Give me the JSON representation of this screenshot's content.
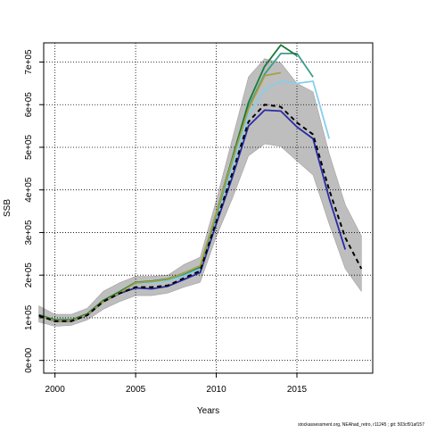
{
  "chart_data": {
    "type": "line",
    "title": "",
    "xlabel": "Years",
    "ylabel": "SSB",
    "xlim": [
      1999.3,
      2019.7
    ],
    "ylim": [
      -30000,
      745000
    ],
    "xticks": [
      2000,
      2005,
      2010,
      2015
    ],
    "xtick_labels": [
      "2000",
      "2005",
      "2010",
      "2015"
    ],
    "yticks": [
      0,
      100000,
      200000,
      300000,
      400000,
      500000,
      600000,
      700000
    ],
    "ytick_labels": [
      "0e+00",
      "1e+05",
      "2e+05",
      "3e+05",
      "4e+05",
      "5e+05",
      "6e+05",
      "7e+05"
    ],
    "grid": true,
    "colors": {
      "band": "#bebebe",
      "band_edge": "#a0a0a0",
      "base": "#000000",
      "r2018": "#2a2aa8",
      "r2017": "#87ceeb",
      "r2016": "#3a9e8a",
      "r2015": "#1a7a3a",
      "r2014": "#a8a040",
      "axis": "#000000",
      "grid": "#000000"
    },
    "confidence_band": {
      "x": [
        1999,
        2000,
        2001,
        2002,
        2003,
        2004,
        2005,
        2006,
        2007,
        2008,
        2009,
        2010,
        2011,
        2012,
        2013,
        2014,
        2015,
        2016,
        2017,
        2018,
        2019
      ],
      "lower": [
        90000,
        80000,
        82000,
        95000,
        120000,
        138000,
        152000,
        152000,
        158000,
        172000,
        183000,
        290000,
        380000,
        480000,
        508000,
        502000,
        468000,
        435000,
        320000,
        215000,
        162000
      ],
      "upper": [
        128000,
        108000,
        108000,
        122000,
        162000,
        182000,
        197000,
        197000,
        200000,
        225000,
        242000,
        375000,
        520000,
        665000,
        708000,
        698000,
        650000,
        630000,
        485000,
        365000,
        292000
      ]
    },
    "series": [
      {
        "style": "dashed-black",
        "x": [
          1999,
          2000,
          2001,
          2002,
          2003,
          2004,
          2005,
          2006,
          2007,
          2008,
          2009,
          2010,
          2011,
          2012,
          2013,
          2014,
          2015,
          2016,
          2017,
          2018,
          2019
        ],
        "values": [
          105000,
          92000,
          92000,
          106000,
          138000,
          157000,
          172000,
          172000,
          176000,
          193000,
          210000,
          325000,
          440000,
          560000,
          600000,
          595000,
          558000,
          530000,
          400000,
          288000,
          215000
        ]
      },
      {
        "style": "solid",
        "color_key": "r2018",
        "x": [
          1999,
          2000,
          2001,
          2002,
          2003,
          2004,
          2005,
          2006,
          2007,
          2008,
          2009,
          2010,
          2011,
          2012,
          2013,
          2014,
          2015,
          2016,
          2017,
          2018
        ],
        "values": [
          105000,
          92000,
          92000,
          106000,
          138000,
          157000,
          170000,
          168000,
          174000,
          190000,
          206000,
          320000,
          430000,
          550000,
          587000,
          585000,
          548000,
          520000,
          380000,
          260000
        ]
      },
      {
        "style": "solid",
        "color_key": "r2017",
        "x": [
          1999,
          2000,
          2001,
          2002,
          2003,
          2004,
          2005,
          2006,
          2007,
          2008,
          2009,
          2010,
          2011,
          2012,
          2013,
          2014,
          2015,
          2016,
          2017
        ],
        "values": [
          105000,
          93000,
          93000,
          107000,
          139000,
          159000,
          180000,
          182000,
          186000,
          198000,
          215000,
          335000,
          455000,
          575000,
          635000,
          655000,
          650000,
          655000,
          520000
        ]
      },
      {
        "style": "solid",
        "color_key": "r2016",
        "x": [
          1999,
          2000,
          2001,
          2002,
          2003,
          2004,
          2005,
          2006,
          2007,
          2008,
          2009,
          2010,
          2011,
          2012,
          2013,
          2014,
          2015,
          2016
        ],
        "values": [
          106000,
          94000,
          94000,
          108000,
          140000,
          160000,
          182000,
          185000,
          190000,
          202000,
          218000,
          340000,
          468000,
          595000,
          672000,
          720000,
          720000,
          665000
        ]
      },
      {
        "style": "solid",
        "color_key": "r2015",
        "x": [
          1999,
          2000,
          2001,
          2002,
          2003,
          2004,
          2005,
          2006,
          2007,
          2008,
          2009,
          2010,
          2011,
          2012,
          2013,
          2014,
          2015
        ],
        "values": [
          107000,
          95000,
          95000,
          109000,
          141000,
          161000,
          183000,
          186000,
          191000,
          205000,
          220000,
          345000,
          475000,
          605000,
          690000,
          740000,
          715000
        ]
      },
      {
        "style": "solid",
        "color_key": "r2014",
        "x": [
          1999,
          2000,
          2001,
          2002,
          2003,
          2004,
          2005,
          2006,
          2007,
          2008,
          2009,
          2010,
          2011,
          2012,
          2013,
          2014
        ],
        "values": [
          105000,
          93000,
          93000,
          107000,
          138000,
          158000,
          182000,
          185000,
          190000,
          205000,
          222000,
          345000,
          470000,
          590000,
          668000,
          675000
        ]
      }
    ]
  },
  "footer": {
    "text": "stockassessment.org, NEAhad_retro, r11245 ; git: 503cf91af157"
  }
}
